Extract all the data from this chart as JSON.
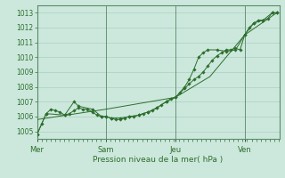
{
  "bg_color": "#cce8dc",
  "grid_color": "#aacfbf",
  "line_color": "#2d6e2d",
  "title": "Pression niveau de la mer( hPa )",
  "ylim": [
    1004.5,
    1013.5
  ],
  "yticks": [
    1005,
    1006,
    1007,
    1008,
    1009,
    1010,
    1011,
    1012,
    1013
  ],
  "day_labels": [
    "Mer",
    "Sam",
    "Jeu",
    "Ven"
  ],
  "day_positions": [
    0.0,
    0.333,
    0.667,
    1.0
  ],
  "xlim": [
    0.0,
    1.167
  ],
  "line1_x": [
    0.0,
    0.022,
    0.044,
    0.067,
    0.089,
    0.111,
    0.133,
    0.155,
    0.178,
    0.2,
    0.222,
    0.244,
    0.267,
    0.289,
    0.311,
    0.333,
    0.356,
    0.378,
    0.4,
    0.422,
    0.444,
    0.467,
    0.489,
    0.511,
    0.533,
    0.556,
    0.578,
    0.6,
    0.622,
    0.644,
    0.667,
    0.689,
    0.711,
    0.733,
    0.756,
    0.778,
    0.8,
    0.822,
    0.844,
    0.867,
    0.889,
    0.911,
    0.933,
    0.956,
    0.978,
    1.0,
    1.022,
    1.044,
    1.067,
    1.089,
    1.111,
    1.133,
    1.155
  ],
  "line1_y": [
    1004.8,
    1005.5,
    1006.2,
    1006.5,
    1006.4,
    1006.3,
    1006.1,
    1006.2,
    1006.4,
    1006.6,
    1006.5,
    1006.5,
    1006.3,
    1006.1,
    1006.0,
    1006.0,
    1005.9,
    1005.8,
    1005.8,
    1005.9,
    1006.0,
    1006.0,
    1006.1,
    1006.2,
    1006.3,
    1006.4,
    1006.6,
    1006.8,
    1007.0,
    1007.2,
    1007.3,
    1007.6,
    1007.9,
    1008.2,
    1008.5,
    1008.7,
    1009.0,
    1009.4,
    1009.8,
    1010.1,
    1010.3,
    1010.5,
    1010.5,
    1010.6,
    1010.5,
    1011.5,
    1012.0,
    1012.3,
    1012.5,
    1012.5,
    1012.6,
    1013.0,
    1013.0
  ],
  "line2_x": [
    0.0,
    0.333,
    0.667,
    0.833,
    1.0,
    1.155
  ],
  "line2_y": [
    1005.8,
    1006.5,
    1007.3,
    1008.7,
    1011.5,
    1013.0
  ],
  "line3_x": [
    0.0,
    0.044,
    0.133,
    0.178,
    0.2,
    0.267,
    0.311,
    0.333,
    0.356,
    0.4,
    0.444,
    0.489,
    0.533,
    0.578,
    0.622,
    0.667,
    0.711,
    0.733,
    0.756,
    0.778,
    0.8,
    0.822,
    0.867,
    0.911,
    0.956,
    1.0,
    1.044,
    1.089,
    1.133,
    1.155
  ],
  "line3_y": [
    1004.8,
    1006.2,
    1006.1,
    1007.0,
    1006.7,
    1006.5,
    1006.0,
    1006.0,
    1005.9,
    1005.9,
    1006.0,
    1006.1,
    1006.3,
    1006.6,
    1007.0,
    1007.3,
    1008.0,
    1008.5,
    1009.2,
    1010.0,
    1010.3,
    1010.5,
    1010.5,
    1010.4,
    1010.5,
    1011.5,
    1012.3,
    1012.5,
    1013.0,
    1013.0
  ]
}
